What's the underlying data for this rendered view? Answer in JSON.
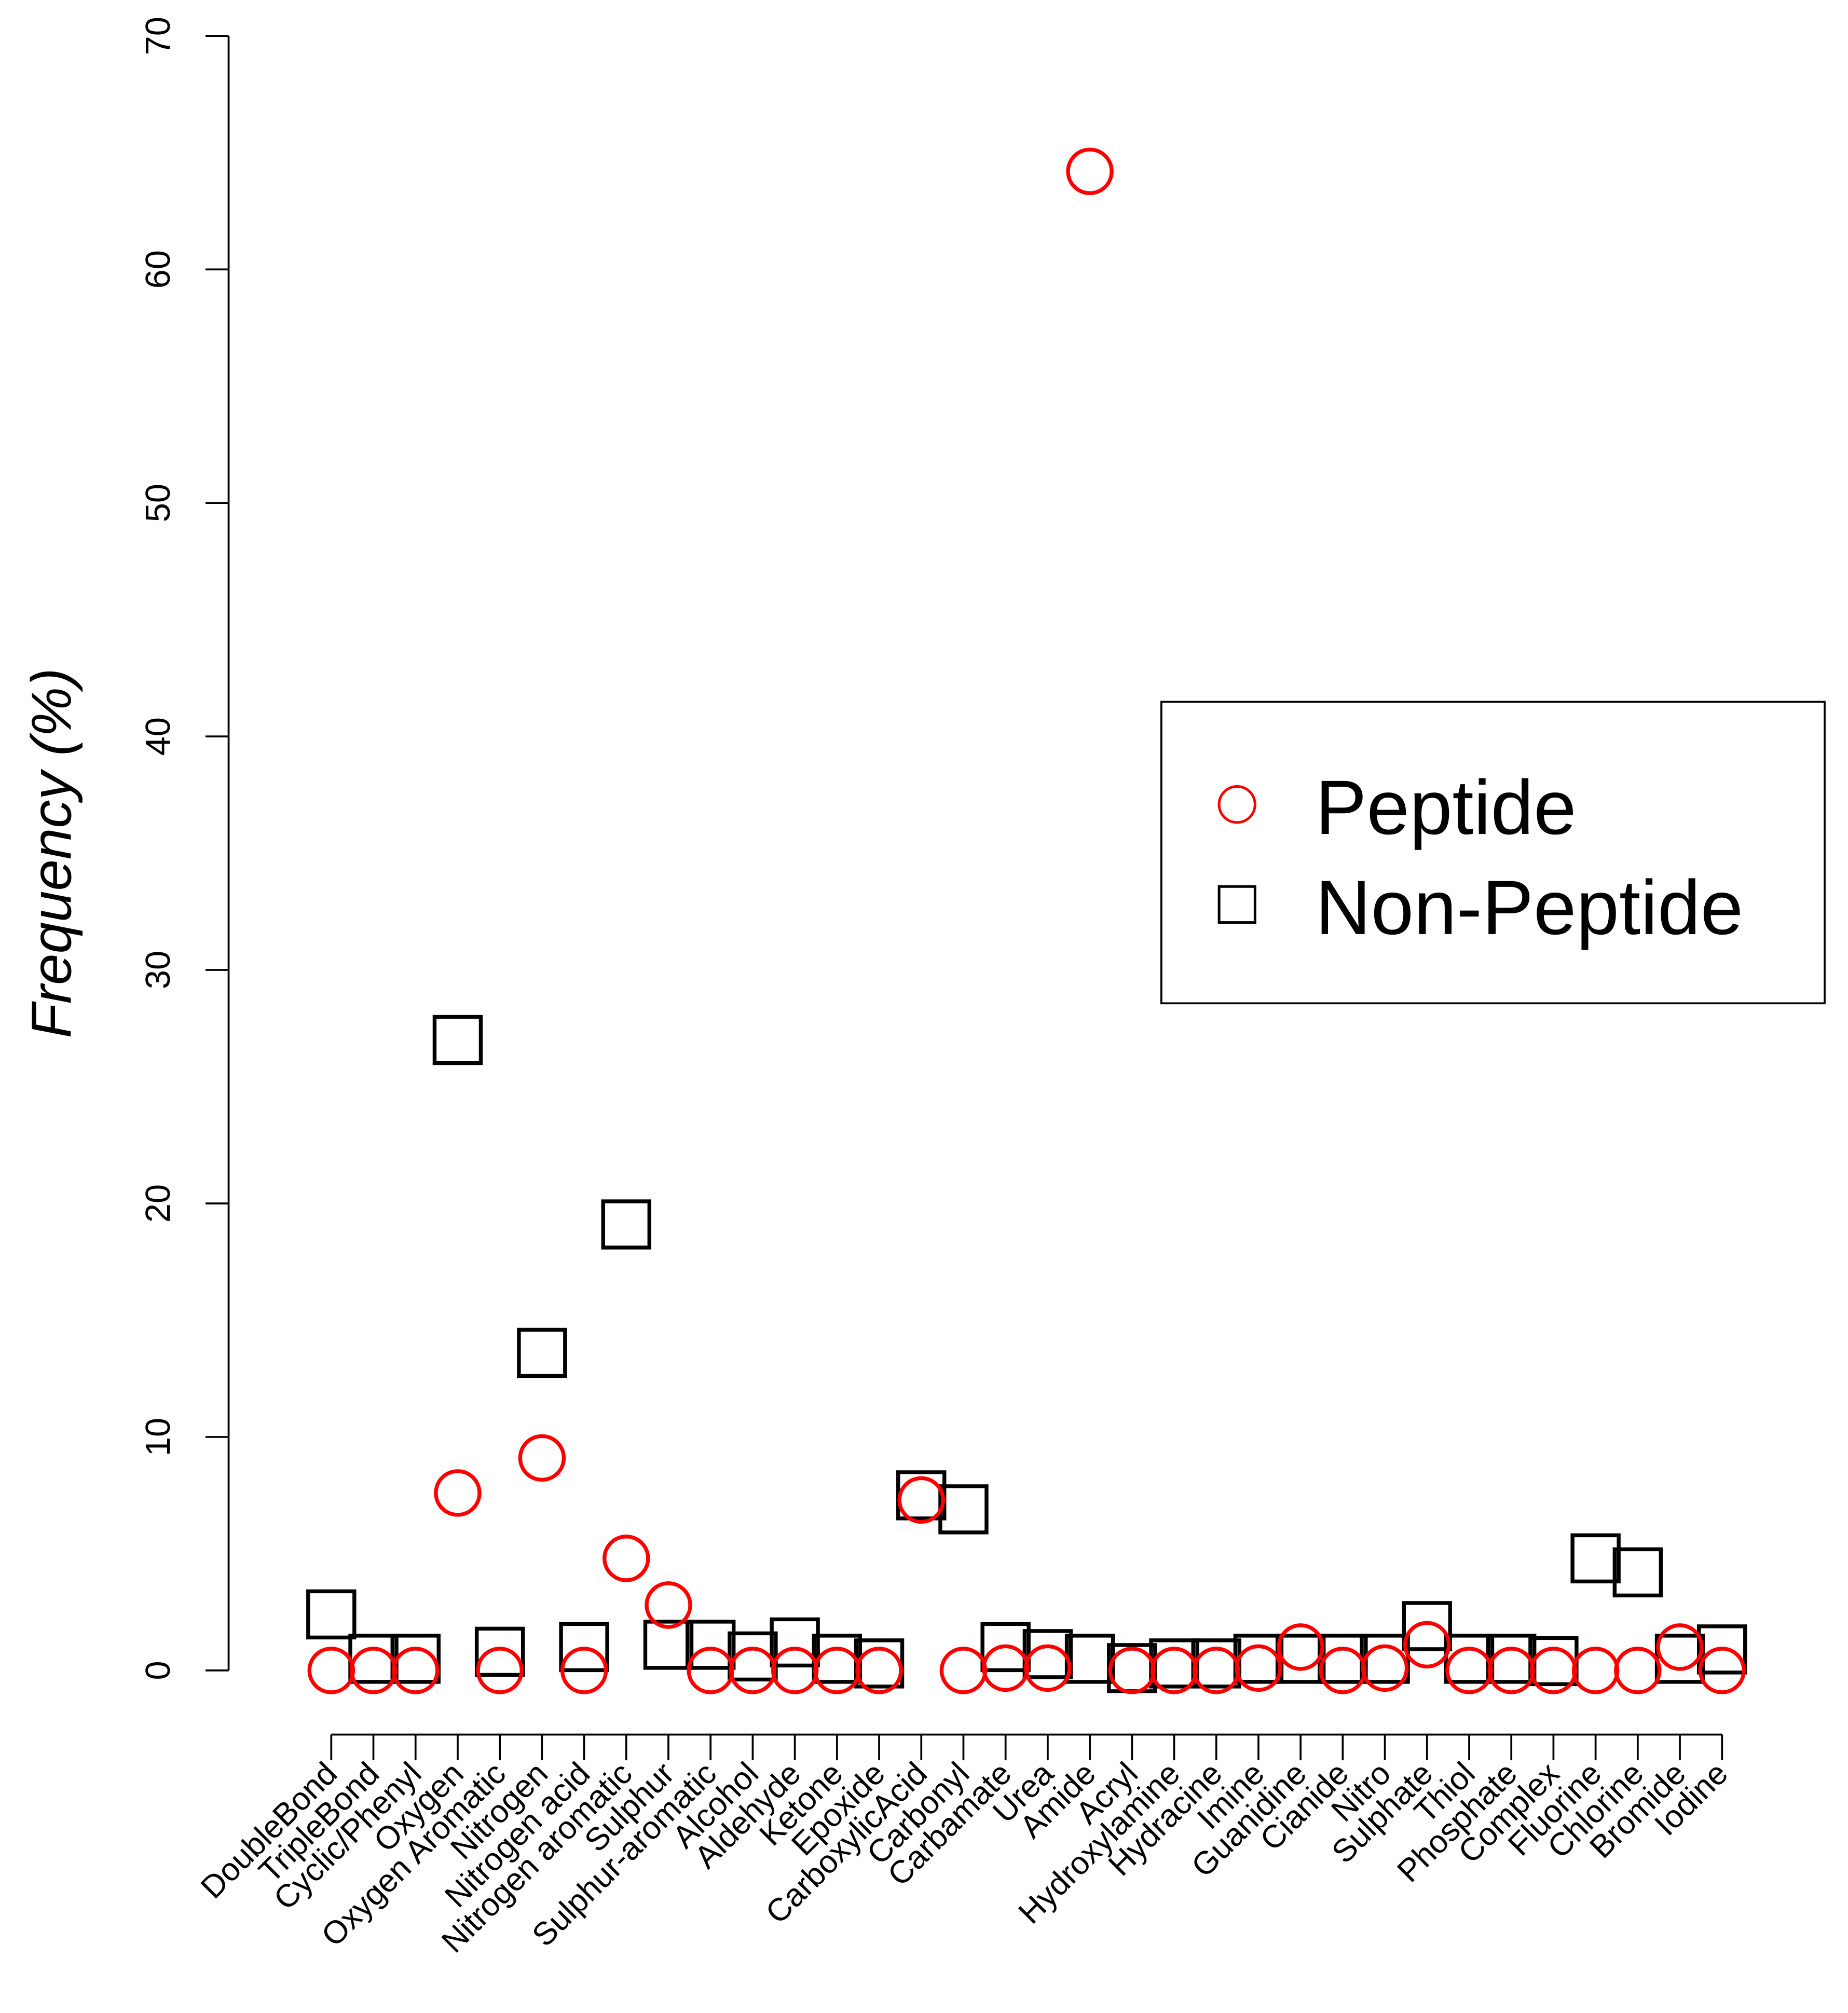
{
  "chart_data": {
    "type": "scatter",
    "title": "",
    "xlabel": "",
    "ylabel": "Frequency (%)",
    "ylim": [
      0,
      70
    ],
    "yticks": [
      0,
      10,
      20,
      30,
      40,
      50,
      60,
      70
    ],
    "grid": false,
    "legend_position": "right",
    "categories": [
      "DoubleBond",
      "TripleBond",
      "Cyclic/Phenyl",
      "Oxygen",
      "Oxygen Aromatic",
      "Nitrogen",
      "Nitrogen acid",
      "Nitrogen aromatic",
      "Sulphur",
      "Sulphur-aromatic",
      "Alcohol",
      "Aldehyde",
      "Ketone",
      "Epoxide",
      "CarboxylicAcid",
      "Carbonyl",
      "Carbamate",
      "Urea",
      "Amide",
      "Acryl",
      "Hydroxylamine",
      "Hydracine",
      "Imine",
      "Guanidine",
      "Cianide",
      "Nitro",
      "Sulphate",
      "Thiol",
      "Phosphate",
      "Complex",
      "Fluorine",
      "Chlorine",
      "Bromide",
      "Iodine"
    ],
    "series": [
      {
        "name": "Non-Peptide",
        "marker": "square",
        "color": "#000000",
        "values": [
          2.4,
          0.5,
          0.5,
          27.0,
          0.8,
          13.6,
          1.0,
          19.1,
          1.1,
          1.1,
          0.6,
          1.2,
          0.5,
          0.3,
          7.5,
          6.9,
          1.0,
          0.7,
          0.5,
          0.1,
          0.3,
          0.3,
          0.5,
          0.5,
          0.5,
          0.5,
          1.9,
          0.5,
          0.5,
          0.4,
          4.8,
          4.2,
          0.5,
          0.9
        ]
      },
      {
        "name": "Peptide",
        "marker": "circle",
        "color": "#ff0000",
        "values": [
          0,
          0,
          0,
          7.6,
          0,
          9.1,
          0,
          4.8,
          2.8,
          0,
          0,
          0,
          0,
          0,
          7.3,
          0,
          0.1,
          0.1,
          64.2,
          0,
          0,
          0,
          0.1,
          1.0,
          0,
          0.1,
          1.1,
          0,
          0,
          0,
          0,
          0,
          1.0,
          0
        ]
      }
    ],
    "legend": [
      "Peptide",
      "Non-Peptide"
    ]
  }
}
